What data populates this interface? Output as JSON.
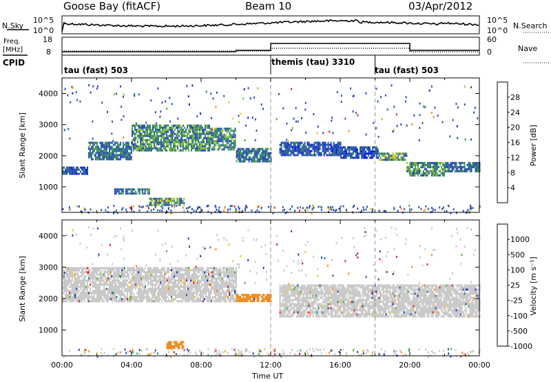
{
  "header": {
    "radar": "Goose Bay (fitACF)",
    "beam": "Beam 10",
    "date": "03/Apr/2012"
  },
  "noise_panel": {
    "left_label": "N.Sky",
    "left_ticks": [
      "10^5",
      "10^0"
    ],
    "right_ticks": [
      "10^5",
      "10^0"
    ],
    "right_label": "N.Search"
  },
  "freq_panel": {
    "left_label_1": "Freq.",
    "left_label_2": "[MHz]",
    "left_ticks": [
      "18",
      "8"
    ],
    "right_ticks": [
      "60",
      "0"
    ],
    "right_label": "Nave"
  },
  "cpid": {
    "label": "CPID",
    "segments": [
      {
        "name": "tau (fast) 503",
        "start_hour": 0,
        "end_hour": 12
      },
      {
        "name": "themis (tau) 3310",
        "start_hour": 12,
        "end_hour": 18
      },
      {
        "name": "tau (fast) 503",
        "start_hour": 18,
        "end_hour": 24
      }
    ]
  },
  "power_panel": {
    "ylabel": "Slant Range [km]",
    "yticks": [
      "4000",
      "3000",
      "2000",
      "1000"
    ],
    "colorbar_label": "Power [dB]",
    "colorbar_ticks": [
      "28",
      "24",
      "20",
      "16",
      "12",
      "8",
      "4"
    ],
    "colors": [
      "#0a1ae6",
      "#2a4fb4",
      "#2f7d6e",
      "#4aa04a",
      "#8fc63a",
      "#f2c21b",
      "#f08a1a",
      "#e02020"
    ]
  },
  "velocity_panel": {
    "ylabel": "Slant Range [km]",
    "yticks": [
      "4000",
      "3000",
      "2000",
      "1000"
    ],
    "colorbar_label": "Velocity [m s⁻¹]",
    "colorbar_ticks": [
      "1000",
      "500",
      "100",
      "25",
      "-25",
      "-100",
      "-500",
      "-1000"
    ],
    "colors": [
      "#1c2fd6",
      "#2b4a9a",
      "#2f7d6e",
      "#48b43a",
      "#c8c8c8",
      "#f2c21b",
      "#f08a1a",
      "#e02020"
    ]
  },
  "xaxis": {
    "ticks": [
      "00:00",
      "04:00",
      "08:00",
      "12:00",
      "16:00",
      "20:00",
      "00:00"
    ],
    "label": "Time UT"
  },
  "chart_data": [
    {
      "type": "heatmap",
      "title": "",
      "xlabel": "Time UT",
      "ylabel": "Slant Range [km]",
      "xlim_hours": [
        0,
        24
      ],
      "ylim_km": [
        180,
        4500
      ],
      "colorbar": {
        "label": "Power [dB]",
        "range": [
          0,
          30
        ],
        "ticks": [
          4,
          8,
          12,
          16,
          20,
          24,
          28
        ]
      },
      "bands": [
        {
          "from_hour": 0.0,
          "to_hour": 1.5,
          "range_km": [
            1450,
            1650
          ],
          "power_db": 8
        },
        {
          "from_hour": 1.5,
          "to_hour": 4.0,
          "range_km": [
            1900,
            2450
          ],
          "power_db": 12
        },
        {
          "from_hour": 4.0,
          "to_hour": 8.5,
          "range_km": [
            2200,
            3000
          ],
          "power_db": 14
        },
        {
          "from_hour": 8.5,
          "to_hour": 10.0,
          "range_km": [
            2200,
            2900
          ],
          "power_db": 14
        },
        {
          "from_hour": 10.0,
          "to_hour": 12.0,
          "range_km": [
            1850,
            2250
          ],
          "power_db": 12
        },
        {
          "from_hour": 12.5,
          "to_hour": 16.0,
          "range_km": [
            2050,
            2450
          ],
          "power_db": 8
        },
        {
          "from_hour": 16.0,
          "to_hour": 18.2,
          "range_km": [
            1950,
            2300
          ],
          "power_db": 8
        },
        {
          "from_hour": 18.2,
          "to_hour": 19.8,
          "range_km": [
            1850,
            2100
          ],
          "power_db": 20
        },
        {
          "from_hour": 19.8,
          "to_hour": 22.0,
          "range_km": [
            1350,
            1800
          ],
          "power_db": 14
        },
        {
          "from_hour": 22.0,
          "to_hour": 24.0,
          "range_km": [
            1500,
            1800
          ],
          "power_db": 10
        },
        {
          "from_hour": 3.0,
          "to_hour": 5.0,
          "range_km": [
            800,
            950
          ],
          "power_db": 12
        },
        {
          "from_hour": 5.0,
          "to_hour": 7.0,
          "range_km": [
            450,
            650
          ],
          "power_db": 20
        }
      ]
    },
    {
      "type": "heatmap",
      "title": "",
      "xlabel": "Time UT",
      "ylabel": "Slant Range [km]",
      "xlim_hours": [
        0,
        24
      ],
      "ylim_km": [
        180,
        4500
      ],
      "colorbar": {
        "label": "Velocity [m s⁻¹]",
        "ticks": [
          1000,
          500,
          100,
          25,
          -25,
          -100,
          -500,
          -1000
        ]
      },
      "bands": [
        {
          "from_hour": 0.0,
          "to_hour": 10.0,
          "range_km": [
            1900,
            3000
          ],
          "velocity_ms": 0
        },
        {
          "from_hour": 10.0,
          "to_hour": 12.0,
          "range_km": [
            1950,
            2150
          ],
          "velocity_ms": -300
        },
        {
          "from_hour": 12.5,
          "to_hour": 24.0,
          "range_km": [
            1400,
            2450
          ],
          "velocity_ms": 0
        },
        {
          "from_hour": 6.0,
          "to_hour": 7.0,
          "range_km": [
            450,
            650
          ],
          "velocity_ms": -300
        }
      ]
    }
  ]
}
